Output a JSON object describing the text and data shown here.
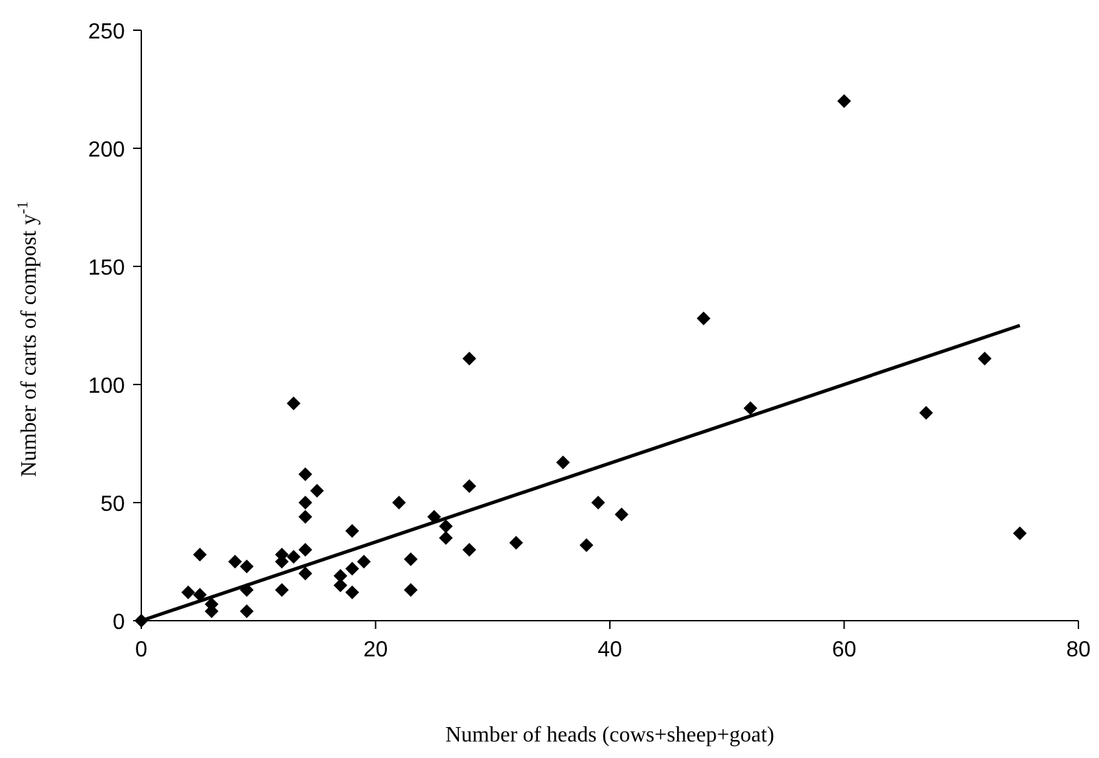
{
  "chart_data": {
    "type": "scatter",
    "xlabel": "Number of heads (cows+sheep+goat)",
    "ylabel": "Number of carts of compost y$^{-1}$",
    "xlim": [
      0,
      80
    ],
    "ylim": [
      0,
      250
    ],
    "xticks": [
      0,
      20,
      40,
      60,
      80
    ],
    "yticks": [
      0,
      50,
      100,
      150,
      200,
      250
    ],
    "grid": false,
    "series": [
      {
        "color": "#000000",
        "marker": "diamond",
        "x": [
          0,
          4,
          5,
          5,
          6,
          6,
          8,
          9,
          9,
          9,
          12,
          12,
          12,
          13,
          13,
          14,
          14,
          14,
          14,
          14,
          15,
          17,
          17,
          18,
          18,
          18,
          19,
          22,
          23,
          23,
          25,
          26,
          26,
          28,
          28,
          28,
          32,
          36,
          38,
          39,
          41,
          48,
          52,
          60,
          67,
          72,
          75
        ],
        "values": [
          0,
          12,
          28,
          11,
          7,
          4,
          25,
          23,
          13,
          4,
          13,
          28,
          25,
          92,
          27,
          62,
          50,
          44,
          30,
          20,
          55,
          15,
          19,
          38,
          12,
          22,
          25,
          50,
          26,
          13,
          44,
          40,
          35,
          111,
          57,
          30,
          33,
          67,
          32,
          50,
          45,
          128,
          90,
          220,
          88,
          111,
          37
        ]
      },
      {
        "type": "line",
        "color": "#000000",
        "marker": "none",
        "x": [
          0,
          75
        ],
        "values": [
          0,
          125
        ]
      }
    ]
  }
}
